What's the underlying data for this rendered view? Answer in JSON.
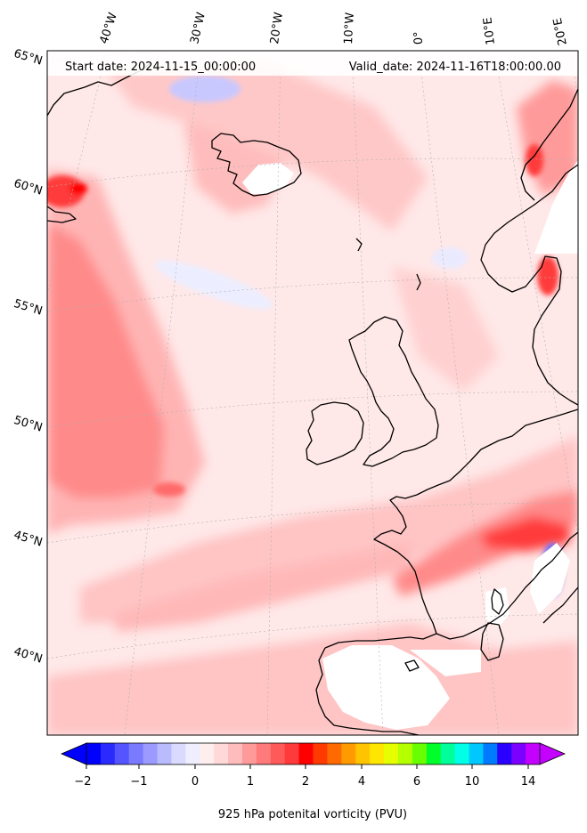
{
  "header": {
    "start_date": "Start date: 2024-11-15_00:00:00",
    "valid_date": "Valid_date: 2024-11-16T18:00:00.00"
  },
  "map": {
    "projection": "conic",
    "coastline_color": "#000000",
    "graticule_color": "#b0b0b0",
    "lat_labels": [
      "65°N",
      "60°N",
      "55°N",
      "50°N",
      "45°N",
      "40°N"
    ],
    "lon_labels": [
      "40°W",
      "30°W",
      "20°W",
      "10°W",
      "0°",
      "10°E",
      "20°E"
    ],
    "field": "925 hPa potential vorticity",
    "dominant_values_pvu": [
      0.2,
      1.5
    ]
  },
  "colorbar": {
    "label": "925 hPa potenital vorticity (PVU)",
    "tick_labels": [
      "−2",
      "−1",
      "0",
      "1",
      "2",
      "4",
      "6",
      "10",
      "14"
    ],
    "extend": "both",
    "colors": [
      "#0000ff",
      "#2a2aff",
      "#5555ff",
      "#7a7aff",
      "#9a9aff",
      "#babaff",
      "#dadaff",
      "#eeeeff",
      "#ffeeee",
      "#ffd8d8",
      "#ffbcbc",
      "#ff9a9a",
      "#ff7a7a",
      "#ff5a5a",
      "#ff3a3a",
      "#ff0000",
      "#ff3a00",
      "#ff6a00",
      "#ff9a00",
      "#ffc400",
      "#ffe600",
      "#e6ff00",
      "#b4ff00",
      "#6aff00",
      "#00ff2a",
      "#00ff9a",
      "#00ffe6",
      "#00c8ff",
      "#007aff",
      "#2a00ff",
      "#7a00ff",
      "#c400ff"
    ],
    "under_color": "#0000ff",
    "over_color": "#c400ff"
  }
}
